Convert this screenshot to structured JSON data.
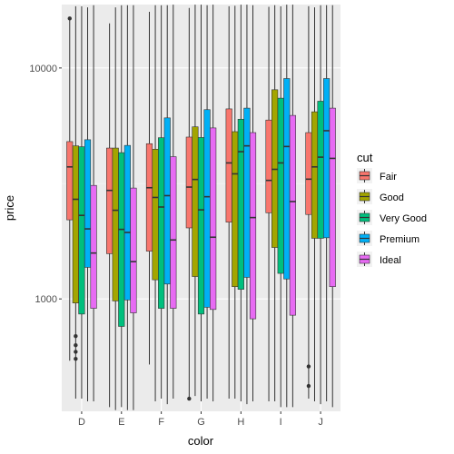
{
  "chart_data": {
    "type": "boxplot",
    "xlabel": "color",
    "ylabel": "price",
    "y_scale": "log10",
    "ylim": [
      326,
      18823
    ],
    "y_ticks": [
      1000,
      10000
    ],
    "y_tick_labels": [
      "1000",
      "10000"
    ],
    "categories": [
      "D",
      "E",
      "F",
      "G",
      "H",
      "I",
      "J"
    ],
    "legend_title": "cut",
    "legend_position": "right",
    "grid": true,
    "series": [
      {
        "name": "Fair",
        "color": "#F8766D",
        "boxes": [
          {
            "whisker_low": 540,
            "q1": 2200,
            "median": 3730,
            "q3": 4800,
            "whisker_high": 16400,
            "outliers": [
              16386
            ]
          },
          {
            "whisker_low": 340,
            "q1": 1570,
            "median": 2950,
            "q3": 4500,
            "whisker_high": 15600,
            "outliers": []
          },
          {
            "whisker_low": 520,
            "q1": 1610,
            "median": 3030,
            "q3": 4700,
            "whisker_high": 17500,
            "outliers": []
          },
          {
            "whisker_low": 370,
            "q1": 2030,
            "median": 3050,
            "q3": 5020,
            "whisker_high": 18200,
            "outliers": []
          },
          {
            "whisker_low": 370,
            "q1": 2150,
            "median": 3880,
            "q3": 6650,
            "whisker_high": 18500,
            "outliers": []
          },
          {
            "whisker_low": 360,
            "q1": 2360,
            "median": 3260,
            "q3": 5950,
            "whisker_high": 18400,
            "outliers": []
          },
          {
            "whisker_low": 370,
            "q1": 2320,
            "median": 3300,
            "q3": 5250,
            "whisker_high": 18500,
            "outliers": []
          }
        ]
      },
      {
        "name": "Good",
        "color": "#A3A500",
        "boxes": [
          {
            "whisker_low": 370,
            "q1": 960,
            "median": 2700,
            "q3": 4600,
            "whisker_high": 18500,
            "outliers": [
              550,
              590,
              630,
              690
            ]
          },
          {
            "whisker_low": 330,
            "q1": 980,
            "median": 2420,
            "q3": 4500,
            "whisker_high": 18300,
            "outliers": []
          },
          {
            "whisker_low": 360,
            "q1": 1210,
            "median": 2750,
            "q3": 4450,
            "whisker_high": 18700,
            "outliers": []
          },
          {
            "whisker_low": 380,
            "q1": 1250,
            "median": 3290,
            "q3": 5560,
            "whisker_high": 18800,
            "outliers": []
          },
          {
            "whisker_low": 370,
            "q1": 1130,
            "median": 3480,
            "q3": 5300,
            "whisker_high": 18600,
            "outliers": []
          },
          {
            "whisker_low": 360,
            "q1": 1670,
            "median": 3640,
            "q3": 8050,
            "whisker_high": 18700,
            "outliers": []
          },
          {
            "whisker_low": 360,
            "q1": 1830,
            "median": 3730,
            "q3": 6460,
            "whisker_high": 18300,
            "outliers": []
          }
        ]
      },
      {
        "name": "Very Good",
        "color": "#00BF7D",
        "boxes": [
          {
            "whisker_low": 370,
            "q1": 860,
            "median": 2300,
            "q3": 4560,
            "whisker_high": 18500,
            "outliers": []
          },
          {
            "whisker_low": 340,
            "q1": 760,
            "median": 2000,
            "q3": 4300,
            "whisker_high": 18700,
            "outliers": []
          },
          {
            "whisker_low": 370,
            "q1": 910,
            "median": 2500,
            "q3": 4990,
            "whisker_high": 18700,
            "outliers": []
          },
          {
            "whisker_low": 360,
            "q1": 860,
            "median": 2430,
            "q3": 5000,
            "whisker_high": 18800,
            "outliers": []
          },
          {
            "whisker_low": 360,
            "q1": 1100,
            "median": 4340,
            "q3": 6000,
            "whisker_high": 18800,
            "outliers": []
          },
          {
            "whisker_low": 340,
            "q1": 1290,
            "median": 3880,
            "q3": 7400,
            "whisker_high": 18500,
            "outliers": []
          },
          {
            "whisker_low": 350,
            "q1": 1830,
            "median": 4110,
            "q3": 7180,
            "whisker_high": 18700,
            "outliers": []
          }
        ]
      },
      {
        "name": "Premium",
        "color": "#00B0F6",
        "boxes": [
          {
            "whisker_low": 360,
            "q1": 1370,
            "median": 2010,
            "q3": 4890,
            "whisker_high": 18300,
            "outliers": []
          },
          {
            "whisker_low": 330,
            "q1": 990,
            "median": 1940,
            "q3": 4620,
            "whisker_high": 18700,
            "outliers": []
          },
          {
            "whisker_low": 350,
            "q1": 1160,
            "median": 2800,
            "q3": 6080,
            "whisker_high": 18700,
            "outliers": []
          },
          {
            "whisker_low": 370,
            "q1": 920,
            "median": 2770,
            "q3": 6600,
            "whisker_high": 18700,
            "outliers": []
          },
          {
            "whisker_low": 350,
            "q1": 1240,
            "median": 4600,
            "q3": 6700,
            "whisker_high": 18800,
            "outliers": []
          },
          {
            "whisker_low": 340,
            "q1": 1220,
            "median": 4570,
            "q3": 9000,
            "whisker_high": 18800,
            "outliers": []
          },
          {
            "whisker_low": 360,
            "q1": 1840,
            "median": 5350,
            "q3": 9000,
            "whisker_high": 18700,
            "outliers": []
          }
        ]
      },
      {
        "name": "Ideal",
        "color": "#E76BF3",
        "boxes": [
          {
            "whisker_low": 360,
            "q1": 910,
            "median": 1580,
            "q3": 3100,
            "whisker_high": 18700,
            "outliers": []
          },
          {
            "whisker_low": 330,
            "q1": 870,
            "median": 1450,
            "q3": 3020,
            "whisker_high": 18700,
            "outliers": []
          },
          {
            "whisker_low": 370,
            "q1": 910,
            "median": 1800,
            "q3": 4130,
            "whisker_high": 18800,
            "outliers": []
          },
          {
            "whisker_low": 360,
            "q1": 900,
            "median": 1850,
            "q3": 5500,
            "whisker_high": 18800,
            "outliers": []
          },
          {
            "whisker_low": 360,
            "q1": 820,
            "median": 2250,
            "q3": 5250,
            "whisker_high": 18700,
            "outliers": []
          },
          {
            "whisker_low": 340,
            "q1": 850,
            "median": 2640,
            "q3": 6230,
            "whisker_high": 18800,
            "outliers": []
          },
          {
            "whisker_low": 340,
            "q1": 1130,
            "median": 4060,
            "q3": 6700,
            "whisker_high": 18700,
            "outliers": []
          }
        ]
      }
    ],
    "extra_outliers": [
      {
        "category": "G",
        "series": "Fair",
        "value": 370
      },
      {
        "category": "J",
        "series": "Fair",
        "value": 420
      },
      {
        "category": "J",
        "series": "Fair",
        "value": 510
      }
    ]
  }
}
